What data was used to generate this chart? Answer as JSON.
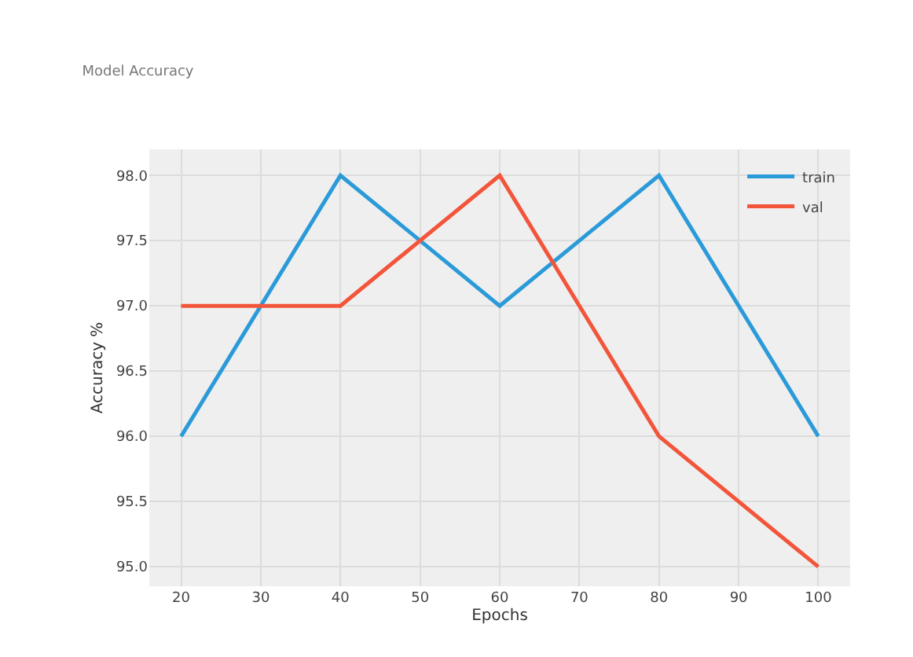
{
  "chart_data": {
    "type": "line",
    "title": "Model Accuracy",
    "xlabel": "Epochs",
    "ylabel": "Accuracy %",
    "x": [
      20,
      40,
      60,
      80,
      100
    ],
    "series": [
      {
        "name": "train",
        "color": "#2b9ad8",
        "values": [
          96.0,
          98.0,
          97.0,
          98.0,
          96.0
        ]
      },
      {
        "name": "val",
        "color": "#f2553a",
        "values": [
          97.0,
          97.0,
          98.0,
          96.0,
          95.0
        ]
      }
    ],
    "xlim": [
      16,
      104
    ],
    "xticks": [
      20,
      30,
      40,
      50,
      60,
      70,
      80,
      90,
      100
    ],
    "ylim": [
      94.85,
      98.2
    ],
    "yticks": [
      {
        "value": 95.0,
        "label": "95.0"
      },
      {
        "value": 95.5,
        "label": "95.5"
      },
      {
        "value": 96.0,
        "label": "96.0"
      },
      {
        "value": 96.5,
        "label": "96.5"
      },
      {
        "value": 97.0,
        "label": "97.0"
      },
      {
        "value": 97.5,
        "label": "97.5"
      },
      {
        "value": 98.0,
        "label": "98.0"
      }
    ],
    "grid": true,
    "legend": "top right",
    "marker": "none",
    "line_style": "solid"
  }
}
